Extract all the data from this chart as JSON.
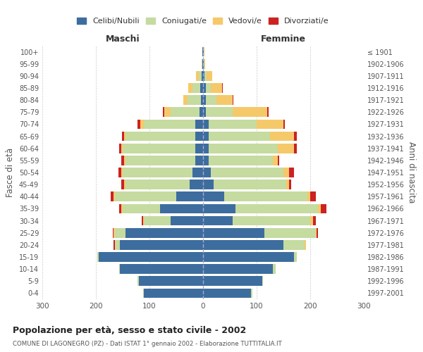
{
  "age_groups": [
    "0-4",
    "5-9",
    "10-14",
    "15-19",
    "20-24",
    "25-29",
    "30-34",
    "35-39",
    "40-44",
    "45-49",
    "50-54",
    "55-59",
    "60-64",
    "65-69",
    "70-74",
    "75-79",
    "80-84",
    "85-89",
    "90-94",
    "95-99",
    "100+"
  ],
  "birth_years": [
    "1997-2001",
    "1992-1996",
    "1987-1991",
    "1982-1986",
    "1977-1981",
    "1972-1976",
    "1967-1971",
    "1962-1966",
    "1957-1961",
    "1952-1956",
    "1947-1951",
    "1942-1946",
    "1937-1941",
    "1932-1936",
    "1927-1931",
    "1922-1926",
    "1917-1921",
    "1912-1916",
    "1907-1911",
    "1902-1906",
    "≤ 1901"
  ],
  "males": {
    "celibi": [
      110,
      120,
      155,
      195,
      155,
      145,
      60,
      80,
      50,
      25,
      20,
      15,
      15,
      15,
      15,
      6,
      4,
      5,
      3,
      1,
      1
    ],
    "coniugati": [
      2,
      2,
      2,
      2,
      10,
      20,
      50,
      70,
      115,
      120,
      130,
      130,
      135,
      130,
      95,
      55,
      25,
      15,
      5,
      1,
      0
    ],
    "vedovi": [
      0,
      0,
      0,
      0,
      0,
      2,
      2,
      2,
      2,
      2,
      3,
      2,
      2,
      3,
      7,
      12,
      8,
      8,
      5,
      0,
      0
    ],
    "divorziati": [
      0,
      0,
      0,
      0,
      2,
      2,
      3,
      5,
      5,
      5,
      5,
      5,
      5,
      3,
      5,
      2,
      0,
      0,
      0,
      0,
      0
    ]
  },
  "females": {
    "nubili": [
      90,
      110,
      130,
      170,
      150,
      115,
      55,
      60,
      40,
      20,
      15,
      10,
      10,
      10,
      10,
      5,
      5,
      5,
      2,
      1,
      1
    ],
    "coniugate": [
      2,
      2,
      5,
      5,
      40,
      95,
      145,
      155,
      155,
      135,
      135,
      120,
      130,
      115,
      90,
      50,
      20,
      10,
      5,
      1,
      0
    ],
    "vedove": [
      0,
      0,
      0,
      0,
      2,
      2,
      5,
      5,
      5,
      5,
      10,
      10,
      30,
      45,
      50,
      65,
      30,
      20,
      10,
      2,
      1
    ],
    "divorziate": [
      0,
      0,
      0,
      0,
      0,
      2,
      5,
      10,
      10,
      5,
      10,
      2,
      5,
      5,
      2,
      2,
      2,
      2,
      0,
      0,
      0
    ]
  },
  "colors": {
    "celibi": "#3d6d9e",
    "coniugati": "#c5dba0",
    "vedovi": "#f5c96a",
    "divorziati": "#cc2222"
  },
  "xlim": 300,
  "title": "Popolazione per età, sesso e stato civile - 2002",
  "subtitle": "COMUNE DI LAGONEGRO (PZ) - Dati ISTAT 1° gennaio 2002 - Elaborazione TUTTITALIA.IT",
  "ylabel": "Fasce di età",
  "right_ylabel": "Anni di nascita",
  "xlabel_left": "Maschi",
  "xlabel_right": "Femmine",
  "legend_labels": [
    "Celibi/Nubili",
    "Coniugati/e",
    "Vedovi/e",
    "Divorziati/e"
  ],
  "bar_height": 0.8,
  "background_color": "#ffffff",
  "grid_color": "#cccccc"
}
